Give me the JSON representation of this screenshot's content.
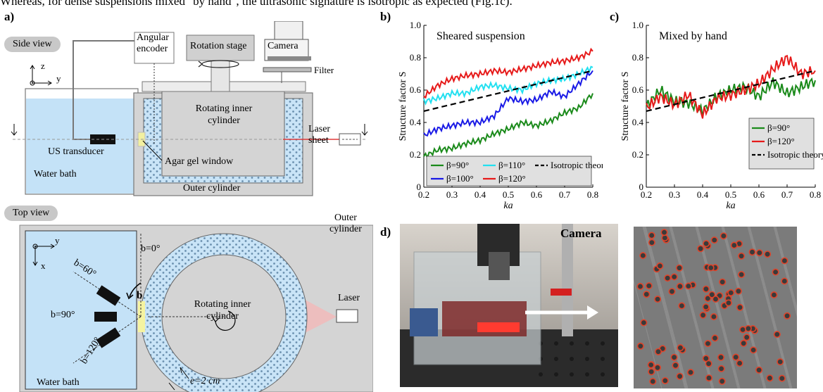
{
  "caption_partial": "Whereas, for dense suspensions mixed \"by hand\", the ultrasonic signature is isotropic as expected (Fig.1c).",
  "panels": {
    "a": {
      "label": "a)",
      "side_view": {
        "title": "Side view",
        "angular_encoder": "Angular\nencoder",
        "rotation_stage": "Rotation stage",
        "camera": "Camera",
        "filter": "Filter",
        "inner_cylinder": "Rotating inner\ncylinder",
        "laser_sheet": "Laser\nsheet",
        "us_transducer": "US transducer",
        "agar_window": "Agar gel window",
        "water_bath": "Water bath",
        "outer_cylinder": "Outer cylinder",
        "axis_z": "z",
        "axis_y": "y"
      },
      "top_view": {
        "title": "Top view",
        "outer_cylinder": "Outer\ncylinder",
        "inner_cylinder": "Rotating inner\ncylinder",
        "laser": "Laser",
        "water_bath": "Water bath",
        "b0": "b=0°",
        "b60": "b=60°",
        "b90": "b=90°",
        "b120": "b=120°",
        "b": "b",
        "gap": "e=2 cm",
        "axis_y": "y",
        "axis_x": "x"
      }
    },
    "b": {
      "label": "b)",
      "chart_data": {
        "type": "line",
        "title": "Sheared suspension",
        "xlabel": "ka",
        "ylabel": "Structure factor S",
        "xlim": [
          0.2,
          0.8
        ],
        "ylim": [
          0,
          1.0
        ],
        "xticks": [
          "0.2",
          "0.3",
          "0.4",
          "0.5",
          "0.6",
          "0.7",
          "0.8"
        ],
        "yticks": [
          "0",
          "0.2",
          "0.4",
          "0.6",
          "0.8",
          "1.0"
        ],
        "legend": [
          "β=90°",
          "β=110°",
          "Isotropic theory",
          "β=100°",
          "β=120°"
        ],
        "legend_placement": "bottom",
        "series": [
          {
            "name": "β=90°",
            "color": "#1a8a1a",
            "x": [
              0.2,
              0.25,
              0.3,
              0.35,
              0.4,
              0.45,
              0.5,
              0.55,
              0.6,
              0.65,
              0.7,
              0.75,
              0.8
            ],
            "y": [
              0.19,
              0.23,
              0.24,
              0.27,
              0.29,
              0.33,
              0.36,
              0.4,
              0.38,
              0.41,
              0.46,
              0.49,
              0.58
            ]
          },
          {
            "name": "β=100°",
            "color": "#1a1ae6",
            "x": [
              0.2,
              0.25,
              0.3,
              0.35,
              0.4,
              0.45,
              0.5,
              0.55,
              0.6,
              0.65,
              0.7,
              0.75,
              0.8
            ],
            "y": [
              0.32,
              0.36,
              0.38,
              0.4,
              0.4,
              0.44,
              0.55,
              0.53,
              0.54,
              0.59,
              0.56,
              0.64,
              0.72
            ]
          },
          {
            "name": "β=110°",
            "color": "#22e0f0",
            "x": [
              0.2,
              0.25,
              0.3,
              0.35,
              0.4,
              0.45,
              0.5,
              0.55,
              0.6,
              0.65,
              0.7,
              0.75,
              0.8
            ],
            "y": [
              0.53,
              0.55,
              0.58,
              0.58,
              0.62,
              0.63,
              0.61,
              0.6,
              0.64,
              0.66,
              0.67,
              0.7,
              0.74
            ]
          },
          {
            "name": "β=120°",
            "color": "#e61a1a",
            "x": [
              0.2,
              0.25,
              0.3,
              0.35,
              0.4,
              0.45,
              0.5,
              0.55,
              0.6,
              0.65,
              0.7,
              0.75,
              0.8
            ],
            "y": [
              0.56,
              0.63,
              0.67,
              0.69,
              0.7,
              0.72,
              0.71,
              0.73,
              0.75,
              0.77,
              0.78,
              0.8,
              0.84
            ]
          },
          {
            "name": "Isotropic theory",
            "color": "#000000",
            "dashed": true,
            "x": [
              0.2,
              0.8
            ],
            "y": [
              0.47,
              0.72
            ]
          }
        ]
      }
    },
    "c": {
      "label": "c)",
      "chart_data": {
        "type": "line",
        "title": "Mixed by hand",
        "xlabel": "ka",
        "ylabel": "Structure factor S",
        "xlim": [
          0.2,
          0.8
        ],
        "ylim": [
          0,
          1.0
        ],
        "xticks": [
          "0.2",
          "0.3",
          "0.4",
          "0.5",
          "0.6",
          "0.7",
          "0.8"
        ],
        "yticks": [
          "0",
          "0.2",
          "0.4",
          "0.6",
          "0.8",
          "1.0"
        ],
        "legend": [
          "β=90°",
          "β=120°",
          "Isotropic theory"
        ],
        "legend_placement": "bottom-right",
        "series": [
          {
            "name": "β=90°",
            "color": "#1a8a1a",
            "x": [
              0.2,
              0.25,
              0.3,
              0.35,
              0.4,
              0.45,
              0.5,
              0.55,
              0.6,
              0.65,
              0.7,
              0.75,
              0.8
            ],
            "y": [
              0.5,
              0.6,
              0.53,
              0.52,
              0.47,
              0.56,
              0.6,
              0.62,
              0.56,
              0.65,
              0.58,
              0.62,
              0.66
            ]
          },
          {
            "name": "β=120°",
            "color": "#e61a1a",
            "x": [
              0.2,
              0.25,
              0.3,
              0.35,
              0.4,
              0.45,
              0.5,
              0.55,
              0.6,
              0.65,
              0.7,
              0.75,
              0.8
            ],
            "y": [
              0.49,
              0.56,
              0.51,
              0.57,
              0.45,
              0.55,
              0.57,
              0.6,
              0.64,
              0.73,
              0.8,
              0.7,
              0.72
            ]
          },
          {
            "name": "Isotropic theory",
            "color": "#000000",
            "dashed": true,
            "x": [
              0.2,
              0.8
            ],
            "y": [
              0.47,
              0.72
            ]
          }
        ]
      }
    },
    "d": {
      "label": "d)",
      "camera": "Camera"
    }
  }
}
